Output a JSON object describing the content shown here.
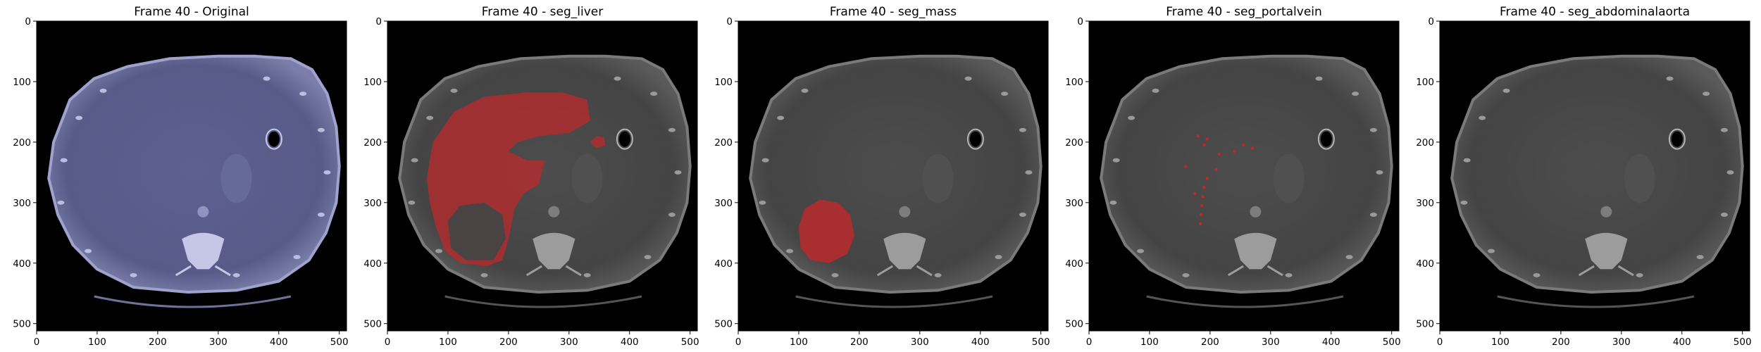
{
  "figure": {
    "panels": [
      {
        "title": "Frame 40 - Original",
        "overlay": "none",
        "tint": "#9a9ed0"
      },
      {
        "title": "Frame 40 - seg_liver",
        "overlay": "liver",
        "tint": "#a8a8a8"
      },
      {
        "title": "Frame 40 - seg_mass",
        "overlay": "mass",
        "tint": "#a8a8a8"
      },
      {
        "title": "Frame 40 - seg_portalvein",
        "overlay": "portalvein",
        "tint": "#a8a8a8"
      },
      {
        "title": "Frame 40 - seg_abdominalaorta",
        "overlay": "none",
        "tint": "#a8a8a8"
      }
    ],
    "x_ticks": [
      "0",
      "100",
      "200",
      "300",
      "400",
      "500"
    ],
    "y_ticks": [
      "0",
      "100",
      "200",
      "300",
      "400",
      "500"
    ],
    "image_extent": [
      0,
      512
    ],
    "overlay_color": "#c0282a"
  }
}
